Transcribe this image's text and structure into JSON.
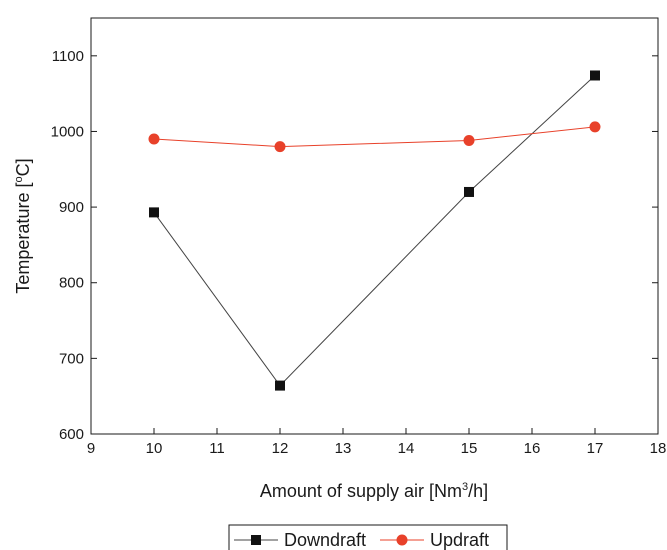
{
  "chart_data": {
    "type": "line",
    "title": "",
    "xlabel": {
      "before": "Amount of supply air [Nm",
      "sup": "3",
      "after": "/h]"
    },
    "ylabel": {
      "before": "Temperature [",
      "sup": "o",
      "after": "C]"
    },
    "xlim": [
      9,
      18
    ],
    "ylim": [
      600,
      1150
    ],
    "xticks": [
      9,
      10,
      11,
      12,
      13,
      14,
      15,
      16,
      17,
      18
    ],
    "yticks": [
      600,
      700,
      800,
      900,
      1000,
      1100
    ],
    "grid": false,
    "legend_position": "bottom-center",
    "series": [
      {
        "name": "Downdraft",
        "marker": "square",
        "color": "#111111",
        "line_color": "#444444",
        "x": [
          10,
          12,
          15,
          17
        ],
        "y": [
          893,
          664,
          920,
          1074
        ]
      },
      {
        "name": "Updraft",
        "marker": "circle",
        "color": "#e8412a",
        "line_color": "#e8412a",
        "x": [
          10,
          12,
          15,
          17
        ],
        "y": [
          990,
          980,
          988,
          1006
        ]
      }
    ]
  }
}
